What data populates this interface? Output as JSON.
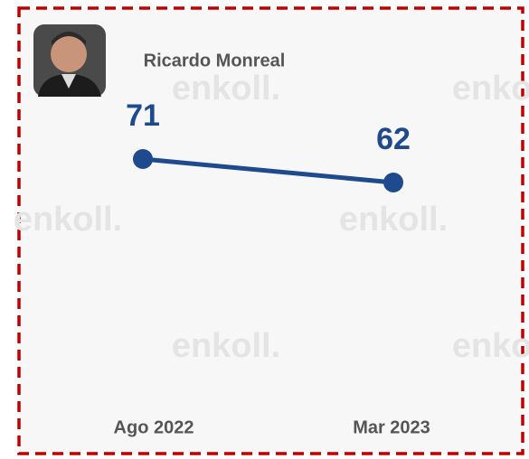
{
  "chart_data": {
    "type": "line",
    "title": "Ricardo Monreal",
    "watermark": "enkoll.",
    "categories": [
      "Ago 2022",
      "Mar 2023"
    ],
    "series": [
      {
        "name": "Ricardo Monreal",
        "color": "#1f4a8e",
        "values": [
          71,
          62
        ]
      }
    ]
  }
}
